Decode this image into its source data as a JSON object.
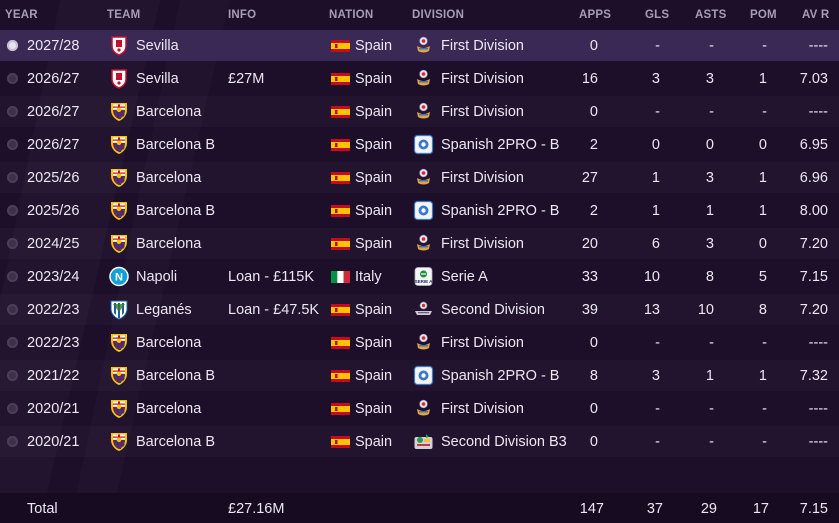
{
  "columns": {
    "year": "YEAR",
    "team": "TEAM",
    "info": "INFO",
    "nation": "NATION",
    "division": "DIVISION",
    "apps": "APPS",
    "gls": "GLS",
    "asts": "ASTS",
    "pom": "POM",
    "avr": "AV R"
  },
  "colors": {
    "selected_row": "#3a2855",
    "background": "#1d0f2a",
    "header_text": "#a89cb5"
  },
  "rows": [
    {
      "year": "2027/28",
      "team": "Sevilla",
      "crest": "sevilla-crest",
      "info": "",
      "nation": "Spain",
      "flag": "spain-flag",
      "division": "First Division",
      "div_icon": "laliga-icon",
      "apps": "0",
      "gls": "-",
      "asts": "-",
      "pom": "-",
      "avr": "----",
      "selected": true
    },
    {
      "year": "2026/27",
      "team": "Sevilla",
      "crest": "sevilla-crest",
      "info": "£27M",
      "nation": "Spain",
      "flag": "spain-flag",
      "division": "First Division",
      "div_icon": "laliga-icon",
      "apps": "16",
      "gls": "3",
      "asts": "3",
      "pom": "1",
      "avr": "7.03"
    },
    {
      "year": "2026/27",
      "team": "Barcelona",
      "crest": "barcelona-crest",
      "info": "",
      "nation": "Spain",
      "flag": "spain-flag",
      "division": "First Division",
      "div_icon": "laliga-icon",
      "apps": "0",
      "gls": "-",
      "asts": "-",
      "pom": "-",
      "avr": "----"
    },
    {
      "year": "2026/27",
      "team": "Barcelona B",
      "crest": "barcelona-crest",
      "info": "",
      "nation": "Spain",
      "flag": "spain-flag",
      "division": "Spanish 2PRO - B",
      "div_icon": "segunda-b-icon",
      "apps": "2",
      "gls": "0",
      "asts": "0",
      "pom": "0",
      "avr": "6.95"
    },
    {
      "year": "2025/26",
      "team": "Barcelona",
      "crest": "barcelona-crest",
      "info": "",
      "nation": "Spain",
      "flag": "spain-flag",
      "division": "First Division",
      "div_icon": "laliga-icon",
      "apps": "27",
      "gls": "1",
      "asts": "3",
      "pom": "1",
      "avr": "6.96"
    },
    {
      "year": "2025/26",
      "team": "Barcelona B",
      "crest": "barcelona-crest",
      "info": "",
      "nation": "Spain",
      "flag": "spain-flag",
      "division": "Spanish 2PRO - B",
      "div_icon": "segunda-b-icon",
      "apps": "2",
      "gls": "1",
      "asts": "1",
      "pom": "1",
      "avr": "8.00"
    },
    {
      "year": "2024/25",
      "team": "Barcelona",
      "crest": "barcelona-crest",
      "info": "",
      "nation": "Spain",
      "flag": "spain-flag",
      "division": "First Division",
      "div_icon": "laliga-icon",
      "apps": "20",
      "gls": "6",
      "asts": "3",
      "pom": "0",
      "avr": "7.20"
    },
    {
      "year": "2023/24",
      "team": "Napoli",
      "crest": "napoli-crest",
      "info": "Loan - £115K",
      "nation": "Italy",
      "flag": "italy-flag",
      "division": "Serie A",
      "div_icon": "serie-a-icon",
      "apps": "33",
      "gls": "10",
      "asts": "8",
      "pom": "5",
      "avr": "7.15"
    },
    {
      "year": "2022/23",
      "team": "Leganés",
      "crest": "leganes-crest",
      "info": "Loan - £47.5K",
      "nation": "Spain",
      "flag": "spain-flag",
      "division": "Second Division",
      "div_icon": "laliga2-icon",
      "apps": "39",
      "gls": "13",
      "asts": "10",
      "pom": "8",
      "avr": "7.20"
    },
    {
      "year": "2022/23",
      "team": "Barcelona",
      "crest": "barcelona-crest",
      "info": "",
      "nation": "Spain",
      "flag": "spain-flag",
      "division": "First Division",
      "div_icon": "laliga-icon",
      "apps": "0",
      "gls": "-",
      "asts": "-",
      "pom": "-",
      "avr": "----"
    },
    {
      "year": "2021/22",
      "team": "Barcelona B",
      "crest": "barcelona-crest",
      "info": "",
      "nation": "Spain",
      "flag": "spain-flag",
      "division": "Spanish 2PRO - B",
      "div_icon": "segunda-b-icon",
      "apps": "8",
      "gls": "3",
      "asts": "1",
      "pom": "1",
      "avr": "7.32"
    },
    {
      "year": "2020/21",
      "team": "Barcelona",
      "crest": "barcelona-crest",
      "info": "",
      "nation": "Spain",
      "flag": "spain-flag",
      "division": "First Division",
      "div_icon": "laliga-icon",
      "apps": "0",
      "gls": "-",
      "asts": "-",
      "pom": "-",
      "avr": "----"
    },
    {
      "year": "2020/21",
      "team": "Barcelona B",
      "crest": "barcelona-crest",
      "info": "",
      "nation": "Spain",
      "flag": "spain-flag",
      "division": "Second Division B3",
      "div_icon": "segunda-b3-icon",
      "apps": "0",
      "gls": "-",
      "asts": "-",
      "pom": "-",
      "avr": "----"
    }
  ],
  "total": {
    "label": "Total",
    "info": "£27.16M",
    "apps": "147",
    "gls": "37",
    "asts": "29",
    "pom": "17",
    "avr": "7.15"
  }
}
